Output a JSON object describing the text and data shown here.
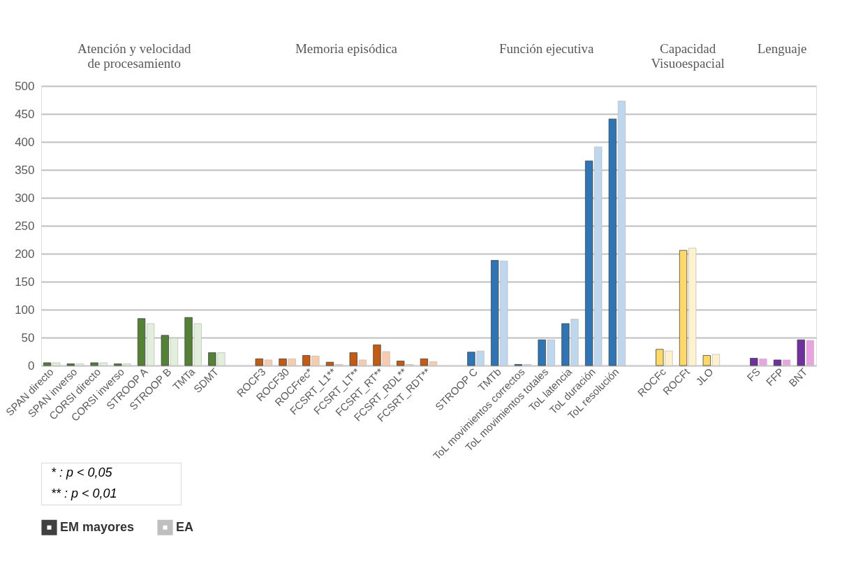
{
  "chart_data": {
    "type": "bar",
    "categories": [
      "SPAN directo",
      "SPAN inverso",
      "CORSI directo",
      "CORSI inverso",
      "STROOP A",
      "STROOP B",
      "TMTa",
      "SDMT",
      null,
      "ROCF3",
      "ROCF30",
      "ROCFrec*",
      "FCSRT_L1**",
      "FCSRT_LT**",
      "FCSRT_RT**",
      "FCSRT_RDL**",
      "FCSRT_RDT**",
      null,
      "STROOP C",
      "TMTb",
      "ToL movimientos correctos",
      "ToL movimientos totales",
      "ToL latencia",
      "ToL duración",
      "ToL resolución",
      null,
      "ROCFc",
      "ROCFt",
      "JLO",
      null,
      "FS",
      "FFP",
      "BNT"
    ],
    "series": [
      {
        "name": "EM mayores",
        "color": "#404040",
        "values": [
          5,
          3,
          5,
          3,
          84,
          54,
          86,
          23,
          null,
          12,
          12,
          18,
          6,
          23,
          37,
          8,
          12,
          null,
          24,
          188,
          2,
          46,
          75,
          366,
          441,
          null,
          29,
          206,
          18,
          null,
          13,
          10,
          46
        ],
        "colors": [
          "#548235",
          "#548235",
          "#548235",
          "#548235",
          "#548235",
          "#548235",
          "#548235",
          "#548235",
          null,
          "#c55a11",
          "#c55a11",
          "#c55a11",
          "#c55a11",
          "#c55a11",
          "#c55a11",
          "#c55a11",
          "#c55a11",
          null,
          "#2e75b6",
          "#2e75b6",
          "#2e75b6",
          "#2e75b6",
          "#2e75b6",
          "#2e75b6",
          "#2e75b6",
          null,
          "#ffd966",
          "#ffd966",
          "#ffd966",
          null,
          "#7030a0",
          "#7030a0",
          "#7030a0"
        ]
      },
      {
        "name": "EA",
        "color": "#bfbfbf",
        "values": [
          5,
          3,
          5,
          3,
          75,
          49,
          75,
          23,
          null,
          10,
          12,
          17,
          2,
          10,
          25,
          2,
          7,
          null,
          26,
          187,
          2,
          46,
          83,
          391,
          473,
          null,
          26,
          210,
          20,
          null,
          12,
          10,
          45
        ],
        "colors": [
          "#e2efda",
          "#e2efda",
          "#e2efda",
          "#e2efda",
          "#e2efda",
          "#e2efda",
          "#e2efda",
          "#e2efda",
          null,
          "#f8cbad",
          "#f8cbad",
          "#f8cbad",
          "#f8cbad",
          "#f8cbad",
          "#f8cbad",
          "#f8cbad",
          "#f8cbad",
          null,
          "#bdd7ee",
          "#bdd7ee",
          "#bdd7ee",
          "#bdd7ee",
          "#bdd7ee",
          "#bdd7ee",
          "#bdd7ee",
          null,
          "#fff2cc",
          "#fff2cc",
          "#fff2cc",
          null,
          "#eaa2e0",
          "#eaa2e0",
          "#eaa2e0"
        ]
      }
    ],
    "ylim": [
      0,
      500
    ],
    "yticks": [
      0,
      50,
      100,
      150,
      200,
      250,
      300,
      350,
      400,
      450,
      500
    ],
    "grid": "y",
    "legend": "bottom",
    "annotations": [
      "Atención y velocidad\nde procesamiento",
      "Memoria episódica",
      "Función ejecutiva",
      "Capacidad\nVisuoespacial",
      "Lenguaje",
      "* : p < 0,05",
      "** : p < 0,01"
    ]
  }
}
